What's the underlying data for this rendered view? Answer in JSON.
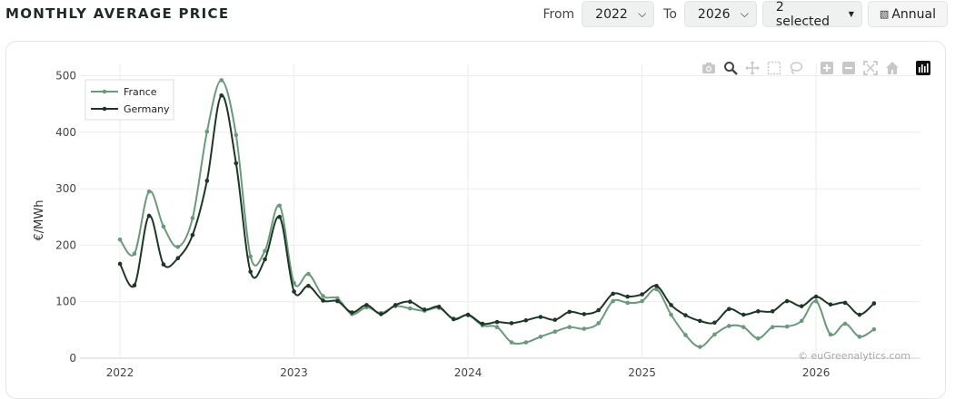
{
  "header": {
    "title": "MONTHLY AVERAGE PRICE",
    "from_label": "From",
    "from_value": "2022",
    "to_label": "To",
    "to_value": "2026",
    "multi_select": "2 selected",
    "annual_label": "Annual",
    "annual_icon": "grid-icon"
  },
  "modebar": {
    "icons": [
      "camera-icon",
      "zoom-icon",
      "pan-icon",
      "box-select-icon",
      "lasso-select-icon",
      "zoom-in-icon",
      "zoom-out-icon",
      "autoscale-icon",
      "reset-axes-icon",
      "plotly-logo-icon"
    ]
  },
  "watermark": "© euGreenalytics.com",
  "chart_data": {
    "type": "line",
    "title": "",
    "xlabel": "",
    "ylabel": "€/MWh",
    "ylim": [
      0,
      520
    ],
    "yticks": [
      0,
      100,
      200,
      300,
      400,
      500
    ],
    "xticks": [
      2022,
      2023,
      2024,
      2025,
      2026
    ],
    "xrange": [
      2021.77,
      2026.6
    ],
    "grid": true,
    "legend_position": "top-left",
    "x": [
      2022.0,
      2022.083,
      2022.167,
      2022.25,
      2022.333,
      2022.417,
      2022.5,
      2022.583,
      2022.667,
      2022.75,
      2022.833,
      2022.917,
      2023.0,
      2023.083,
      2023.167,
      2023.25,
      2023.333,
      2023.417,
      2023.5,
      2023.583,
      2023.667,
      2023.75,
      2023.833,
      2023.917,
      2024.0,
      2024.083,
      2024.167,
      2024.25,
      2024.333,
      2024.417,
      2024.5,
      2024.583,
      2024.667,
      2024.75,
      2024.833,
      2024.917,
      2025.0,
      2025.083,
      2025.167,
      2025.25,
      2025.333,
      2025.417,
      2025.5,
      2025.583,
      2025.667,
      2025.75,
      2025.833,
      2025.917,
      2026.0,
      2026.083,
      2026.167,
      2026.25,
      2026.333
    ],
    "series": [
      {
        "name": "France",
        "color": "#6a9a7b",
        "values": [
          210,
          185,
          295,
          233,
          197,
          248,
          401,
          492,
          395,
          180,
          190,
          270,
          133,
          149,
          110,
          106,
          78,
          90,
          80,
          92,
          88,
          84,
          89,
          70,
          76,
          58,
          55,
          28,
          28,
          38,
          47,
          55,
          52,
          62,
          101,
          98,
          101,
          122,
          77,
          41,
          20,
          42,
          57,
          55,
          35,
          55,
          56,
          66,
          101,
          42,
          61,
          38,
          51
        ]
      },
      {
        "name": "Germany",
        "color": "#1e3626",
        "values": [
          167,
          129,
          252,
          166,
          177,
          218,
          314,
          465,
          345,
          153,
          175,
          250,
          118,
          128,
          102,
          101,
          81,
          94,
          78,
          94,
          100,
          86,
          91,
          69,
          77,
          61,
          64,
          62,
          67,
          73,
          68,
          82,
          78,
          85,
          114,
          109,
          113,
          128,
          94,
          76,
          66,
          63,
          87,
          77,
          83,
          83,
          101,
          92,
          109,
          95,
          98,
          77,
          97
        ]
      }
    ]
  }
}
